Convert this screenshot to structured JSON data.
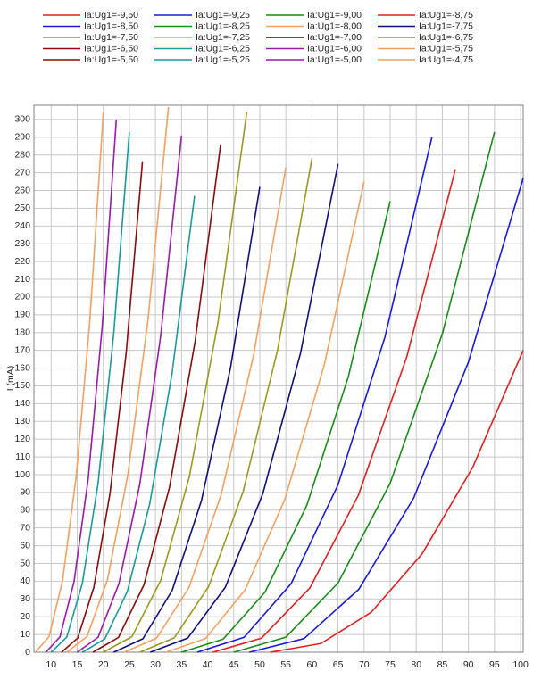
{
  "chart_data": {
    "type": "line",
    "ylabel": "I (mA)",
    "xlim": [
      6.7,
      100.5
    ],
    "ylim": [
      0,
      308
    ],
    "xticks": [
      10,
      15,
      20,
      25,
      30,
      35,
      40,
      45,
      50,
      55,
      60,
      65,
      70,
      75,
      80,
      85,
      90,
      95,
      100
    ],
    "yticks": [
      0,
      10,
      20,
      30,
      40,
      50,
      60,
      70,
      80,
      90,
      100,
      110,
      120,
      130,
      140,
      150,
      160,
      170,
      180,
      190,
      200,
      210,
      220,
      230,
      240,
      250,
      260,
      270,
      280,
      290,
      300
    ],
    "grid": true,
    "legend": "top",
    "series": [
      {
        "name": "Ia:Ug1=-9,50",
        "color": "#e02020",
        "x": [
          52,
          61.7,
          71.4,
          81.1,
          90.8,
          100.5
        ],
        "values": [
          0,
          4.9,
          22.6,
          55.3,
          104,
          170
        ]
      },
      {
        "name": "Ia:Ug1=-9,25",
        "color": "#1a1adc",
        "x": [
          48,
          58.5,
          69,
          79.5,
          90,
          100.5
        ],
        "values": [
          0,
          7.7,
          35.5,
          86.8,
          163.4,
          267
        ]
      },
      {
        "name": "Ia:Ug1=-9,00",
        "color": "#1a8a1a",
        "x": [
          45,
          55,
          65,
          75,
          85,
          95
        ],
        "values": [
          0,
          8.5,
          39,
          95.2,
          179.3,
          293
        ]
      },
      {
        "name": "Ia:Ug1=-8,75",
        "color": "#e02020",
        "x": [
          41,
          50.3,
          59.6,
          68.9,
          78.2,
          87.5
        ],
        "values": [
          0,
          7.9,
          36.2,
          88.4,
          166.5,
          272
        ]
      },
      {
        "name": "Ia:Ug1=-8,50",
        "color": "#1a1adc",
        "x": [
          38,
          47,
          56,
          65,
          74,
          83
        ],
        "values": [
          0,
          8.4,
          38.6,
          94.3,
          177.5,
          290
        ]
      },
      {
        "name": "Ia:Ug1=-8,25",
        "color": "#1a8a1a",
        "x": [
          35,
          43,
          51,
          59,
          67,
          75
        ],
        "values": [
          0,
          7.4,
          33.8,
          82.6,
          155.4,
          254
        ]
      },
      {
        "name": "Ia:Ug1=-8,00",
        "color": "#f4a060",
        "x": [
          32,
          39.6,
          47.2,
          54.8,
          62.4,
          70
        ],
        "values": [
          0,
          7.7,
          35.2,
          86.1,
          162.2,
          265
        ]
      },
      {
        "name": "Ia:Ug1=-7,75",
        "color": "#10107a",
        "x": [
          29,
          36.2,
          43.4,
          50.6,
          57.8,
          65
        ],
        "values": [
          0,
          8,
          36.6,
          89.4,
          168.3,
          275
        ]
      },
      {
        "name": "Ia:Ug1=-7,50",
        "color": "#9a9a20",
        "x": [
          27,
          33.6,
          40.2,
          46.8,
          53.4,
          60
        ],
        "values": [
          0,
          8.1,
          37,
          90.4,
          170.1,
          278
        ]
      },
      {
        "name": "Ia:Ug1=-7,25",
        "color": "#f4a060",
        "x": [
          24,
          30.2,
          36.4,
          42.6,
          48.8,
          55
        ],
        "values": [
          0,
          7.9,
          36.3,
          88.7,
          167.1,
          273
        ]
      },
      {
        "name": "Ia:Ug1=-7,00",
        "color": "#10107a",
        "x": [
          22,
          27.6,
          33.2,
          38.8,
          44.4,
          50
        ],
        "values": [
          0,
          7.6,
          34.8,
          85.2,
          160.3,
          262
        ]
      },
      {
        "name": "Ia:Ug1=-6,75",
        "color": "#9a9a20",
        "x": [
          20,
          25.5,
          31,
          36.5,
          42,
          47.5
        ],
        "values": [
          0,
          8.8,
          40.4,
          98.8,
          186,
          304
        ]
      },
      {
        "name": "Ia:Ug1=-6,50",
        "color": "#8b0a0a",
        "x": [
          18,
          22.9,
          27.8,
          32.7,
          37.6,
          42.5
        ],
        "values": [
          0,
          8.3,
          38,
          93,
          175,
          286
        ]
      },
      {
        "name": "Ia:Ug1=-6,25",
        "color": "#1a9a9a",
        "x": [
          16,
          20.3,
          24.6,
          28.9,
          33.2,
          37.5
        ],
        "values": [
          0,
          7.5,
          34.2,
          83.5,
          157.3,
          257
        ]
      },
      {
        "name": "Ia:Ug1=-6,00",
        "color": "#9a1aaa",
        "x": [
          15,
          19,
          23,
          27,
          31,
          35
        ],
        "values": [
          0,
          8.4,
          38.7,
          94.6,
          178.1,
          291
        ]
      },
      {
        "name": "Ia:Ug1=-5,75",
        "color": "#f4a060",
        "x": [
          13,
          16.9,
          20.8,
          24.7,
          28.6,
          32.5
        ],
        "values": [
          0,
          8.9,
          40.8,
          99.8,
          187.9,
          307
        ]
      },
      {
        "name": "Ia:Ug1=-5,50",
        "color": "#8b0a0a",
        "x": [
          12,
          15.1,
          18.2,
          21.3,
          24.4,
          27.5
        ],
        "values": [
          0,
          8,
          36.7,
          89.7,
          168.9,
          276
        ]
      },
      {
        "name": "Ia:Ug1=-5,25",
        "color": "#1a9a9a",
        "x": [
          10,
          13,
          16,
          19,
          22,
          25
        ],
        "values": [
          0,
          8.5,
          39,
          95.2,
          179.3,
          293
        ]
      },
      {
        "name": "Ia:Ug1=-5,00",
        "color": "#9a1aaa",
        "x": [
          9,
          11.7,
          14.4,
          17.1,
          19.8,
          22.5
        ],
        "values": [
          0,
          8.7,
          39.9,
          97.5,
          183.6,
          300
        ]
      },
      {
        "name": "Ia:Ug1=-4,75",
        "color": "#f4a060",
        "x": [
          7,
          9.6,
          12.2,
          14.8,
          17.4,
          20
        ],
        "values": [
          0,
          8.8,
          40.4,
          98.8,
          186,
          304
        ]
      }
    ]
  }
}
